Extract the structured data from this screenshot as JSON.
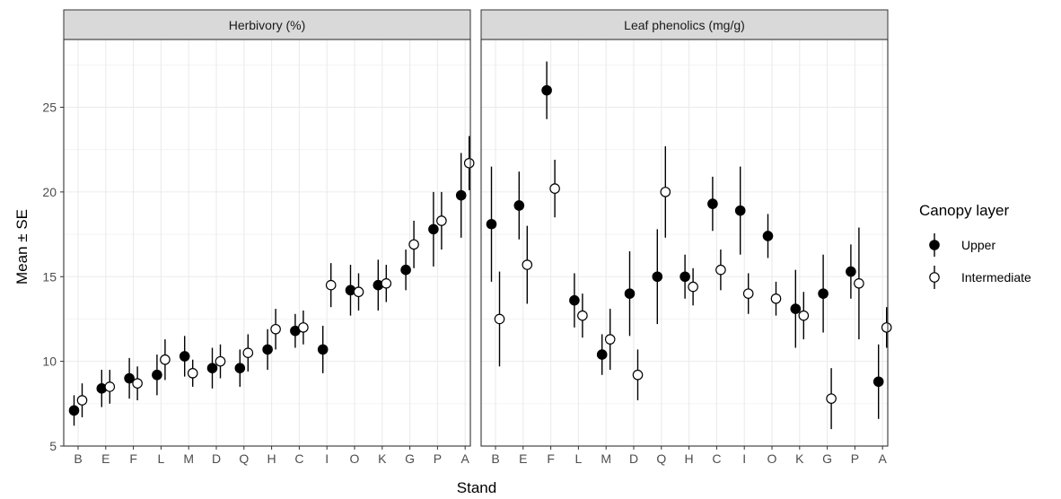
{
  "chart_data": {
    "type": "scatter",
    "ylabel": "Mean ± SE",
    "xlabel": "Stand",
    "ylim": [
      5,
      29
    ],
    "yticks": [
      5,
      10,
      15,
      20,
      25
    ],
    "grid": true,
    "categories": [
      "B",
      "E",
      "F",
      "L",
      "M",
      "D",
      "Q",
      "H",
      "C",
      "I",
      "O",
      "K",
      "G",
      "P",
      "A"
    ],
    "legend": {
      "title": "Canopy layer",
      "position": "right",
      "entries": [
        {
          "name": "Upper",
          "color": "#000000",
          "fill": "#000000"
        },
        {
          "name": "Intermediate",
          "color": "#000000",
          "fill": "#ffffff"
        }
      ]
    },
    "panels": [
      {
        "title": "Herbivory (%)",
        "series": [
          {
            "name": "Upper",
            "mean": [
              7.1,
              8.4,
              9.0,
              9.2,
              10.3,
              9.6,
              9.6,
              10.7,
              11.8,
              10.7,
              14.2,
              14.5,
              15.4,
              17.8,
              19.8
            ],
            "se": [
              0.9,
              1.1,
              1.2,
              1.2,
              1.2,
              1.2,
              1.1,
              1.2,
              1.0,
              1.4,
              1.5,
              1.5,
              1.2,
              2.2,
              2.5
            ]
          },
          {
            "name": "Intermediate",
            "mean": [
              7.7,
              8.5,
              8.7,
              10.1,
              9.3,
              10.0,
              10.5,
              11.9,
              12.0,
              14.5,
              14.1,
              14.6,
              16.9,
              18.3,
              21.7
            ],
            "se": [
              1.0,
              1.0,
              1.0,
              1.2,
              0.8,
              1.0,
              1.1,
              1.2,
              1.0,
              1.3,
              1.1,
              1.1,
              1.4,
              1.7,
              1.6
            ]
          }
        ]
      },
      {
        "title": "Leaf phenolics (mg/g)",
        "series": [
          {
            "name": "Upper",
            "mean": [
              18.1,
              19.2,
              26.0,
              13.6,
              10.4,
              14.0,
              15.0,
              15.0,
              19.3,
              18.9,
              17.4,
              13.1,
              14.0,
              15.3,
              8.8
            ],
            "se": [
              3.4,
              2.0,
              1.7,
              1.6,
              1.2,
              2.5,
              2.8,
              1.3,
              1.6,
              2.6,
              1.3,
              2.3,
              2.3,
              1.6,
              2.2
            ]
          },
          {
            "name": "Intermediate",
            "mean": [
              12.5,
              15.7,
              20.2,
              12.7,
              11.3,
              9.2,
              20.0,
              14.4,
              15.4,
              14.0,
              13.7,
              12.7,
              7.8,
              14.6,
              12.0
            ],
            "se": [
              2.8,
              2.3,
              1.7,
              1.3,
              1.8,
              1.5,
              2.7,
              1.1,
              1.2,
              1.2,
              1.0,
              1.4,
              1.8,
              3.3,
              1.2
            ]
          }
        ]
      }
    ]
  }
}
